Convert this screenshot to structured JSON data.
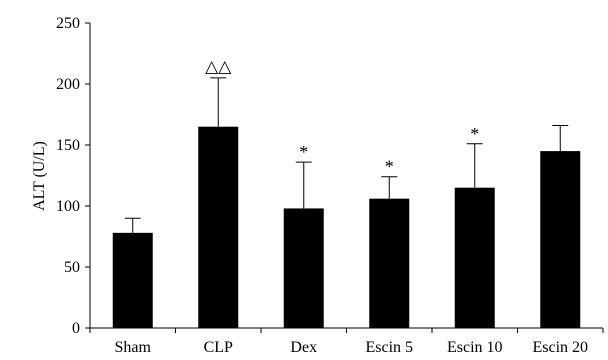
{
  "chart_data": {
    "type": "bar",
    "categories": [
      "Sham",
      "CLP",
      "Dex",
      "Escin 5",
      "Escin 10",
      "Escin 20"
    ],
    "values": [
      78,
      165,
      98,
      106,
      115,
      145
    ],
    "error_upper": [
      90,
      205,
      136,
      124,
      151,
      166
    ],
    "annotations": [
      "",
      "△△",
      "*",
      "*",
      "*",
      ""
    ],
    "ylabel": "ALT (U/L)",
    "xlabel": "",
    "ylim": [
      0,
      250
    ],
    "yticks": [
      0,
      50,
      100,
      150,
      200,
      250
    ],
    "grid": false,
    "bar_color": "#000000"
  }
}
